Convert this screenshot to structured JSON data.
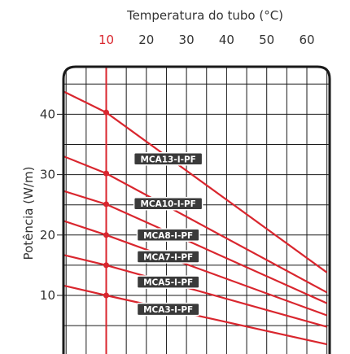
{
  "chart_data": {
    "type": "line",
    "title": "",
    "xlabel": "Temperatura do tubo (°C)",
    "ylabel": "Potência (W/m)",
    "xlim": [
      -5,
      65
    ],
    "ylim": [
      0,
      45
    ],
    "x_ticks": [
      "10",
      "20",
      "30",
      "40",
      "50",
      "60"
    ],
    "x_tick_highlight": "10",
    "y_ticks": [
      "10",
      "20",
      "30",
      "40"
    ],
    "grid": true,
    "highlight_x": 10,
    "colors": {
      "line": "#d9262e",
      "frame": "#1a1a1a",
      "grid": "#1a1a1a",
      "tag_bg": "#3a3a3a",
      "tag_border": "#ffffff",
      "highlight_tick": "#d9262e"
    },
    "series": [
      {
        "name": "MCA13-I-PF",
        "points": [
          [
            -5,
            45.2
          ],
          [
            10,
            40.3
          ],
          [
            65,
            13.8
          ]
        ],
        "marker": [
          10,
          40.3
        ],
        "label_at": [
          22,
          32.6
        ]
      },
      {
        "name": "MCA10-I-PF",
        "points": [
          [
            -5,
            34.2
          ],
          [
            10,
            30.2
          ],
          [
            65,
            10.5
          ]
        ],
        "marker": [
          10,
          30.2
        ],
        "label_at": [
          22,
          25.2
        ]
      },
      {
        "name": "MCA8-I-PF",
        "points": [
          [
            -5,
            28.2
          ],
          [
            10,
            25.1
          ],
          [
            65,
            8.7
          ]
        ],
        "marker": [
          10,
          25.1
        ],
        "label_at": [
          22,
          20.0
        ]
      },
      {
        "name": "MCA7-I-PF",
        "points": [
          [
            -5,
            23.3
          ],
          [
            10,
            20.0
          ],
          [
            65,
            6.7
          ]
        ],
        "marker": [
          10,
          20.0
        ],
        "label_at": [
          22,
          16.4
        ]
      },
      {
        "name": "MCA5-I-PF",
        "points": [
          [
            -5,
            17.4
          ],
          [
            10,
            15.0
          ],
          [
            65,
            4.8
          ]
        ],
        "marker": [
          10,
          15.0
        ],
        "label_at": [
          22,
          12.2
        ]
      },
      {
        "name": "MCA3-I-PF",
        "points": [
          [
            -5,
            12.3
          ],
          [
            10,
            10.0
          ],
          [
            65,
            1.9
          ]
        ],
        "marker": [
          10,
          10.0
        ],
        "label_at": [
          22,
          7.7
        ]
      }
    ]
  }
}
